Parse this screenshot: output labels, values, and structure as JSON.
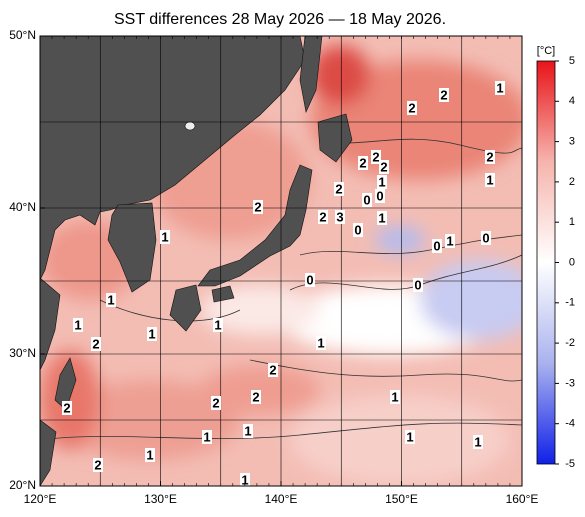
{
  "title": "SST differences 28 May 2026 — 18 May 2026.",
  "map": {
    "lon_ticks": [
      {
        "value": 120,
        "label": "120°E"
      },
      {
        "value": 130,
        "label": "130°E"
      },
      {
        "value": 140,
        "label": "140°E"
      },
      {
        "value": 150,
        "label": "150°E"
      },
      {
        "value": 160,
        "label": "160°E"
      }
    ],
    "lat_ticks": [
      {
        "value": 50,
        "label": "50°N"
      },
      {
        "value": 40,
        "label": "40°N"
      },
      {
        "value": 30,
        "label": "30°N"
      },
      {
        "value": 20,
        "label": "20°N"
      }
    ],
    "grid_step": 5
  },
  "colorbar": {
    "unit": "[°C]",
    "range": [
      -5,
      5
    ],
    "ticks": [
      5,
      4,
      3,
      2,
      1,
      0,
      -1,
      -2,
      -3,
      -4,
      -5
    ],
    "colors": [
      "#e8141a",
      "#f6b4ad",
      "#ffffff",
      "#aab2ee",
      "#1020e8"
    ]
  },
  "contour_labels": [
    "2",
    "2",
    "1",
    "2",
    "1",
    "2",
    "2",
    "2",
    "1",
    "2",
    "0",
    "0",
    "2",
    "2",
    "3",
    "1",
    "0",
    "1",
    "0",
    "0",
    "1",
    "0",
    "0",
    "1",
    "1",
    "1",
    "1",
    "2",
    "1",
    "2",
    "2",
    "2",
    "1",
    "2",
    "1",
    "1",
    "1",
    "1",
    "1",
    "2",
    "1"
  ]
}
